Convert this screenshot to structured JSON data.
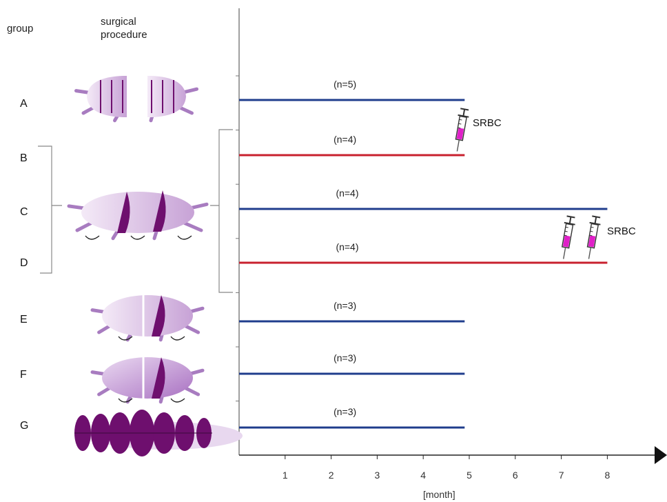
{
  "headers": {
    "group": "group",
    "procedure": "surgical\nprocedure"
  },
  "axis": {
    "unit_label": "[month]",
    "ticks": [
      "1",
      "2",
      "3",
      "4",
      "5",
      "6",
      "7",
      "8"
    ],
    "xlim": [
      0,
      8
    ]
  },
  "colors": {
    "blue": "#1f3d8c",
    "red": "#c8202e",
    "purple": "#6e0f6e",
    "lavender": "#c9a8d6",
    "syringe": "#e020c8"
  },
  "groups": [
    {
      "id": "A",
      "label": "A",
      "n_label": "(n=5)",
      "end_month": 4.9,
      "line_color": "blue",
      "procedure_icon": "transverse-cut-body-icon"
    },
    {
      "id": "B",
      "label": "B",
      "n_label": "(n=4)",
      "end_month": 4.9,
      "line_color": "red",
      "procedure_icon": "double-wedge-body-icon"
    },
    {
      "id": "C",
      "label": "C",
      "n_label": "(n=4)",
      "end_month": 8.0,
      "line_color": "blue",
      "procedure_icon": "double-wedge-body-icon"
    },
    {
      "id": "D",
      "label": "D",
      "n_label": "(n=4)",
      "end_month": 8.0,
      "line_color": "red",
      "procedure_icon": "double-wedge-body-icon"
    },
    {
      "id": "E",
      "label": "E",
      "n_label": "(n=3)",
      "end_month": 4.9,
      "line_color": "blue",
      "procedure_icon": "single-wedge-body-icon"
    },
    {
      "id": "F",
      "label": "F",
      "n_label": "(n=3)",
      "end_month": 4.9,
      "line_color": "blue",
      "procedure_icon": "single-wedge-body-icon"
    },
    {
      "id": "G",
      "label": "G",
      "n_label": "(n=3)",
      "end_month": 4.9,
      "line_color": "blue",
      "procedure_icon": "segmented-body-icon"
    }
  ],
  "injections": [
    {
      "label": "SRBC",
      "months": [
        4.7
      ]
    },
    {
      "label": "SRBC",
      "months": [
        7.1,
        7.65
      ]
    }
  ]
}
